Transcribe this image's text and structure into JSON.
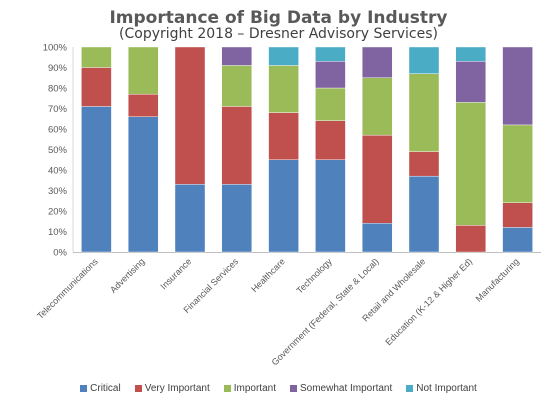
{
  "chart_data": {
    "type": "bar",
    "stacked": true,
    "title": "Importance of Big Data by Industry",
    "subtitle": "(Copyright 2018 – Dresner Advisory Services)",
    "xlabel": "",
    "ylabel": "",
    "ylim": [
      0,
      100
    ],
    "yticks": [
      "0%",
      "10%",
      "20%",
      "30%",
      "40%",
      "50%",
      "60%",
      "70%",
      "80%",
      "90%",
      "100%"
    ],
    "grid": false,
    "legend_position": "bottom",
    "categories": [
      "Telecommunications",
      "Advertising",
      "Insurance",
      "Financial Services",
      "Healthcare",
      "Technology",
      "Government (Federal, State & Local)",
      "Retail and Wholesale",
      "Education (K-12 & Higher Ed)",
      "Manufacturing"
    ],
    "series": [
      {
        "name": "Critical",
        "color": "#4f81bd",
        "values": [
          71,
          66,
          33,
          33,
          45,
          45,
          14,
          37,
          0,
          12
        ]
      },
      {
        "name": "Very Important",
        "color": "#c0504d",
        "values": [
          19,
          11,
          67,
          38,
          23,
          19,
          43,
          12,
          13,
          12
        ]
      },
      {
        "name": "Important",
        "color": "#9bbb59",
        "values": [
          10,
          23,
          0,
          20,
          23,
          16,
          28,
          38,
          60,
          38
        ]
      },
      {
        "name": "Somewhat Important",
        "color": "#8064a2",
        "values": [
          0,
          0,
          0,
          9,
          0,
          13,
          15,
          0,
          20,
          38
        ]
      },
      {
        "name": "Not Important",
        "color": "#4bacc6",
        "values": [
          0,
          0,
          0,
          0,
          9,
          7,
          0,
          13,
          7,
          0
        ]
      }
    ]
  }
}
